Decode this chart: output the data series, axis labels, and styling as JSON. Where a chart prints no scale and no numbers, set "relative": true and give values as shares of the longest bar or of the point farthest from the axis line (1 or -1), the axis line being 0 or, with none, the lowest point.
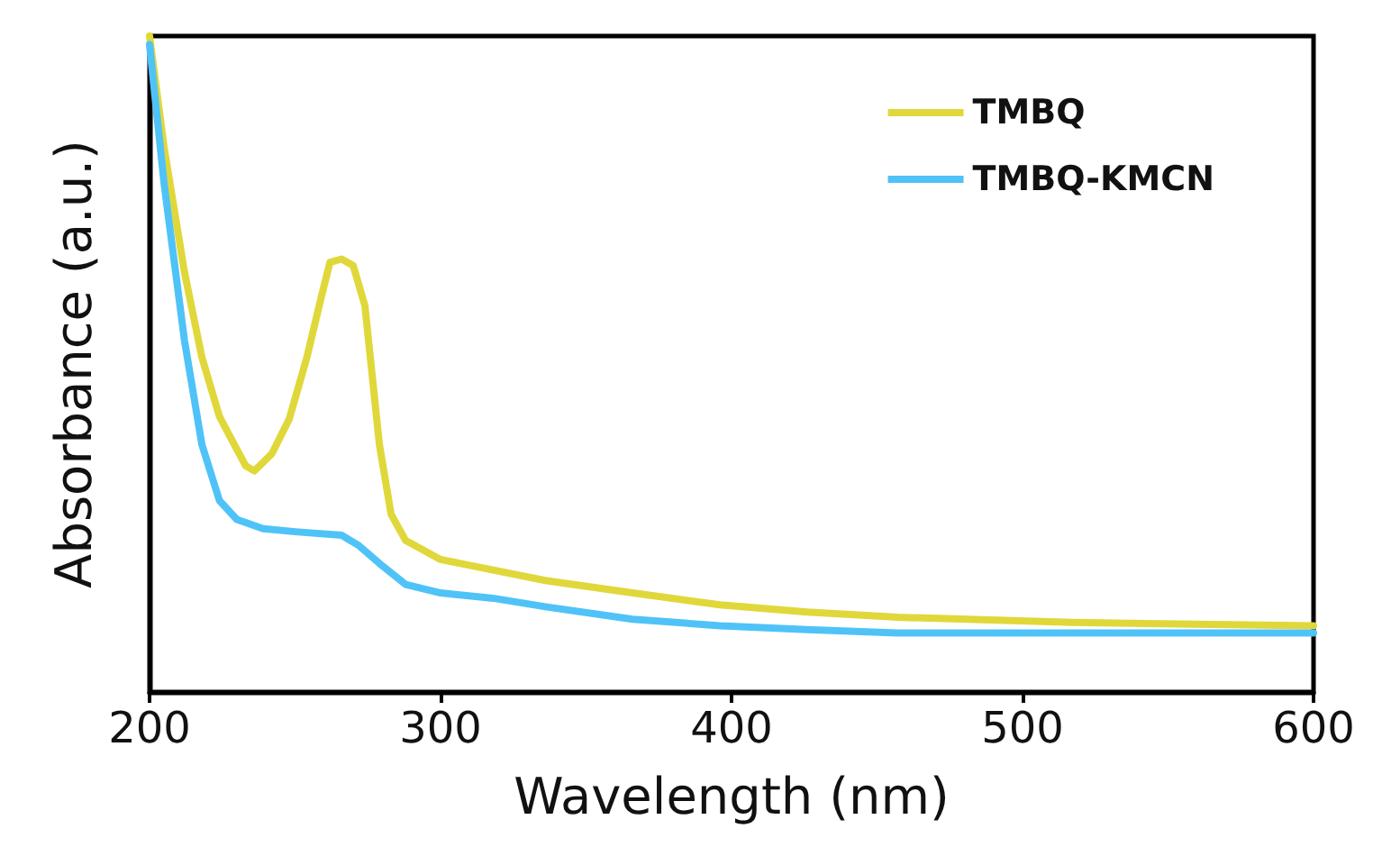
{
  "chart_data": {
    "type": "line",
    "xlabel": "Wavelength (nm)",
    "ylabel": "Absorbance (a.u.)",
    "relative": true,
    "xlim": [
      200,
      600
    ],
    "xticks": [
      200,
      300,
      400,
      500,
      600
    ],
    "grid": false,
    "legend": "top right",
    "marker": "none",
    "line_style": "solid",
    "series": [
      {
        "name": "TMBQ",
        "color": "#e0d83a",
        "x": [
          200,
          205,
          212,
          218,
          224,
          233,
          236,
          242,
          248,
          254,
          259,
          262,
          266,
          270,
          274,
          279,
          283,
          288,
          300,
          336,
          366,
          396,
          426,
          457,
          517,
          600
        ],
        "values": [
          1.0,
          0.83,
          0.64,
          0.51,
          0.42,
          0.345,
          0.337,
          0.363,
          0.416,
          0.509,
          0.602,
          0.655,
          0.66,
          0.65,
          0.589,
          0.377,
          0.271,
          0.231,
          0.202,
          0.17,
          0.151,
          0.133,
          0.122,
          0.114,
          0.106,
          0.101
        ]
      },
      {
        "name": "TMBQ-KMCN",
        "color": "#4fc3f7",
        "x": [
          200,
          205,
          212,
          218,
          224,
          230,
          239,
          251,
          266,
          272,
          279,
          288,
          300,
          318,
          336,
          366,
          396,
          426,
          457,
          600
        ],
        "values": [
          0.987,
          0.775,
          0.536,
          0.377,
          0.292,
          0.263,
          0.249,
          0.244,
          0.239,
          0.223,
          0.196,
          0.164,
          0.151,
          0.143,
          0.13,
          0.111,
          0.101,
          0.095,
          0.09,
          0.09
        ]
      }
    ]
  }
}
